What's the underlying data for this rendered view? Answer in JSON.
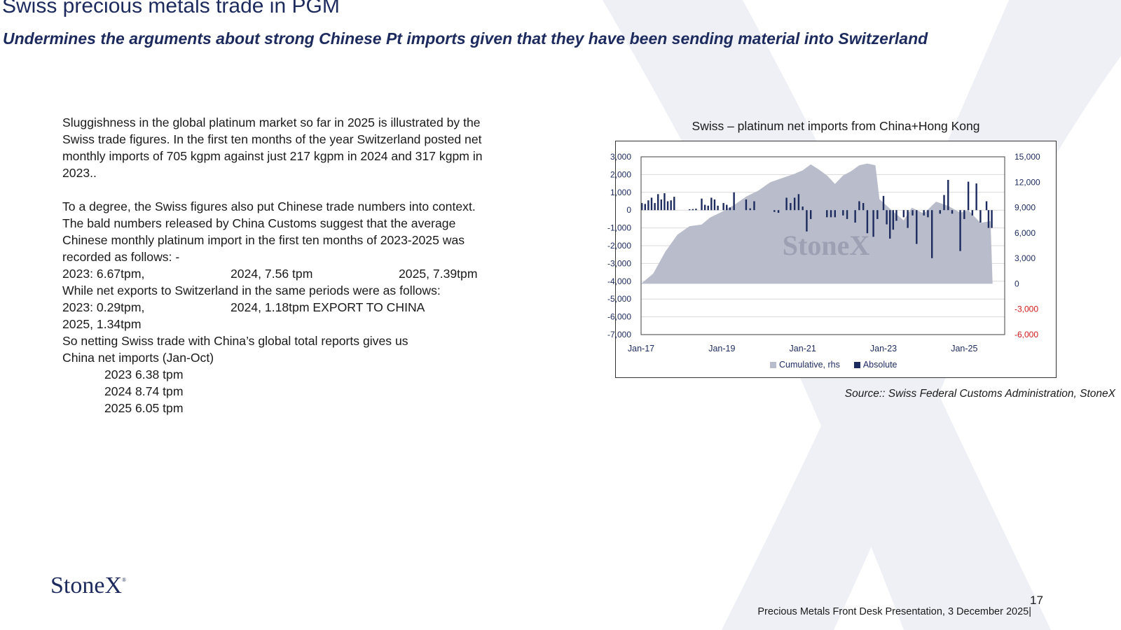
{
  "header": {
    "title": "Swiss precious metals trade in PGM",
    "subtitle": "Undermines the arguments about strong Chinese Pt imports given that they have been sending material into Switzerland"
  },
  "body": {
    "p1": [
      "Sluggishness in the global platinum market so far in 2025 is illustrated by the",
      "Swiss trade figures.  In the first ten months of the year Switzerland posted net",
      "monthly imports of 705 kgpm against just 217 kgpm in 2024 and 317 kgpm in",
      "2023.."
    ],
    "p2": [
      "To a degree, the Swiss figures also put Chinese trade numbers into context.",
      "The bald numbers released by China Customs suggest that the average",
      "Chinese monthly platinum import in the first ten months of 2023-2025 was",
      "recorded as follows: -"
    ],
    "imports_row": [
      "2023: 6.67tpm,",
      "2024, 7.56 tpm",
      "2025, 7.39tpm"
    ],
    "exports_intro": "While net exports to Switzerland in the same periods were as follows:",
    "exports_row": [
      "2023:   0.29tpm,",
      "2024,   1.18tpm EXPORT TO CHINA",
      ""
    ],
    "exports_2025": "2025,   1.34tpm",
    "netting_1": "So netting Swiss trade with China’s global total reports gives us",
    "netting_2": "China net imports (Jan-Oct)",
    "net_imports": [
      "2023    6.38 tpm",
      "2024    8.74 tpm",
      "2025    6.05  tpm"
    ]
  },
  "chart_data": {
    "type": "bar",
    "title": "Swiss – platinum net imports from China+Hong Kong",
    "x_ticks": [
      "Jan-17",
      "Jan-19",
      "Jan-21",
      "Jan-23",
      "Jan-25"
    ],
    "y_left": {
      "lim": [
        -7000,
        3000
      ],
      "ticks": [
        "3,000",
        "2,000",
        "1,000",
        "0",
        "-1,000",
        "-2,000",
        "-3,000",
        "-4,000",
        "-5,000",
        "-6,000",
        "-7,000"
      ]
    },
    "y_right": {
      "lim": [
        -6000,
        15000
      ],
      "ticks": [
        "15,000",
        "12,000",
        "9,000",
        "6,000",
        "3,000",
        "0",
        "-3,000",
        "-6,000"
      ],
      "negative_color": "#d01818"
    },
    "watermark": "StoneX",
    "series": [
      {
        "name": "Cumulative, rhs",
        "type": "area",
        "axis": "right",
        "color": "#b9bdcb",
        "x": [
          2017.0,
          2017.3,
          2017.6,
          2017.9,
          2018.2,
          2018.5,
          2018.7,
          2019.0,
          2019.3,
          2019.6,
          2019.9,
          2020.2,
          2020.5,
          2020.8,
          2021.0,
          2021.2,
          2021.4,
          2021.6,
          2021.8,
          2022.0,
          2022.2,
          2022.4,
          2022.6,
          2022.8,
          2022.9,
          2023.2,
          2023.5,
          2023.7,
          2024.0,
          2024.3,
          2024.6,
          2024.9,
          2025.1,
          2025.4,
          2025.65,
          2025.7
        ],
        "values": [
          0,
          1200,
          3800,
          5800,
          6800,
          7000,
          7800,
          8500,
          9300,
          10300,
          11000,
          12000,
          12500,
          13000,
          13400,
          14100,
          13500,
          12800,
          11800,
          12800,
          13300,
          14000,
          14200,
          14000,
          10000,
          8700,
          7500,
          9000,
          8300,
          9700,
          9200,
          8400,
          8700,
          7200,
          7400,
          0
        ]
      },
      {
        "name": "Absolute",
        "type": "bar",
        "axis": "left",
        "color": "#1c2a5e",
        "x": [
          2017.02,
          2017.1,
          2017.18,
          2017.26,
          2017.34,
          2017.42,
          2017.5,
          2017.58,
          2017.66,
          2017.74,
          2017.82,
          2018.2,
          2018.28,
          2018.36,
          2018.5,
          2018.58,
          2018.66,
          2018.74,
          2018.82,
          2018.9,
          2019.04,
          2019.12,
          2019.2,
          2019.3,
          2019.6,
          2019.7,
          2019.8,
          2020.3,
          2020.4,
          2020.6,
          2020.7,
          2020.8,
          2020.9,
          2021.0,
          2021.1,
          2021.2,
          2021.6,
          2021.7,
          2021.8,
          2022.0,
          2022.1,
          2022.3,
          2022.4,
          2022.5,
          2022.6,
          2022.75,
          2022.85,
          2023.0,
          2023.08,
          2023.16,
          2023.24,
          2023.32,
          2023.5,
          2023.6,
          2023.72,
          2023.82,
          2024.0,
          2024.1,
          2024.2,
          2024.4,
          2024.5,
          2024.6,
          2024.7,
          2024.9,
          2025.0,
          2025.1,
          2025.2,
          2025.3,
          2025.4,
          2025.55,
          2025.6,
          2025.68
        ],
        "values": [
          400,
          350,
          550,
          700,
          400,
          900,
          600,
          950,
          500,
          550,
          750,
          50,
          60,
          80,
          650,
          300,
          250,
          700,
          600,
          250,
          400,
          300,
          150,
          1000,
          600,
          100,
          500,
          -100,
          -150,
          700,
          400,
          700,
          900,
          200,
          -1200,
          -500,
          -400,
          -400,
          -400,
          -300,
          -500,
          -700,
          500,
          400,
          -1300,
          -1500,
          -500,
          800,
          -800,
          -1600,
          -1100,
          -600,
          -400,
          -1000,
          -300,
          -1900,
          -300,
          -400,
          -2700,
          -200,
          850,
          1700,
          -200,
          -2300,
          -500,
          1600,
          -300,
          1500,
          -700,
          500,
          -1000,
          -1000
        ]
      }
    ]
  },
  "source": "Source:: Swiss Federal Customs Administration, StoneX",
  "brand": "StoneX",
  "page_number": "17",
  "footer": "Precious Metals Front Desk Presentation, 3 December 2025|"
}
